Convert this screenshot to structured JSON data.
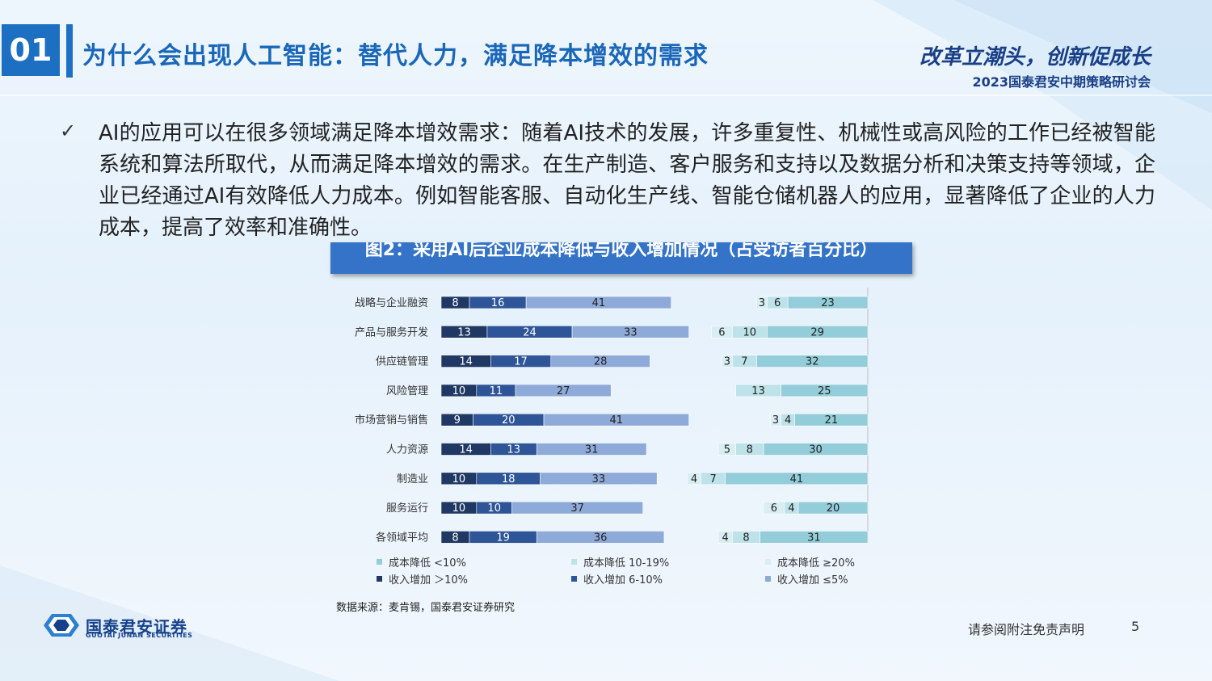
{
  "header": {
    "section_number": "01",
    "title": "为什么会出现人工智能：替代人力，满足降本增效的需求",
    "slogan": "改革立潮头，创新促成长",
    "conference": "2023国泰君安中期策略研讨会"
  },
  "body": {
    "bullet_icon": "checkmark-icon",
    "paragraph": "AI的应用可以在很多领域满足降本增效需求：随着AI技术的发展，许多重复性、机械性或高风险的工作已经被智能系统和算法所取代，从而满足降本增效的需求。在生产制造、客户服务和支持以及数据分析和决策支持等领域，企业已经通过AI有效降低人力成本。例如智能客服、自动化生产线、智能仓储机器人的应用，显著降低了企业的人力成本，提高了效率和准确性。"
  },
  "chart_title": "图2：采用AI后企业成本降低与收入增加情况（占受访者百分比）",
  "chart_data": {
    "type": "bar",
    "orientation": "horizontal-stacked",
    "categories": [
      "战略与企业融资",
      "产品与服务开发",
      "供应链管理",
      "风险管理",
      "市场营销与销售",
      "人力资源",
      "制造业",
      "服务运行",
      "各领域平均"
    ],
    "revenue_increase": {
      "series": [
        {
          "name": "收入增加 ＞10%",
          "color": "#203864",
          "values": [
            8,
            13,
            14,
            10,
            9,
            14,
            10,
            10,
            8
          ]
        },
        {
          "name": "收入增加 6-10%",
          "color": "#2e5597",
          "values": [
            16,
            24,
            17,
            11,
            20,
            13,
            18,
            10,
            19
          ]
        },
        {
          "name": "收入增加 ≤5%",
          "color": "#8eaad8",
          "values": [
            41,
            33,
            28,
            27,
            41,
            31,
            33,
            37,
            36
          ]
        }
      ]
    },
    "cost_decrease": {
      "series": [
        {
          "name": "成本降低 ≥20%",
          "color": "#d8eef2",
          "values": [
            3,
            6,
            3,
            null,
            3,
            5,
            4,
            6,
            4
          ]
        },
        {
          "name": "成本降低 10-19%",
          "color": "#bde2e9",
          "values": [
            6,
            10,
            7,
            13,
            4,
            8,
            7,
            4,
            8
          ]
        },
        {
          "name": "成本降低 <10%",
          "color": "#93cdd9",
          "values": [
            23,
            29,
            32,
            25,
            21,
            30,
            41,
            20,
            31
          ]
        }
      ]
    },
    "legend": [
      {
        "label": "成本降低 <10%",
        "color": "#93cdd9"
      },
      {
        "label": "成本降低 10-19%",
        "color": "#bde2e9"
      },
      {
        "label": "成本降低 ≥20%",
        "color": "#d8eef2"
      },
      {
        "label": "收入增加 ＞10%",
        "color": "#203864"
      },
      {
        "label": "收入增加 6-10%",
        "color": "#2e5597"
      },
      {
        "label": "收入增加 ≤5%",
        "color": "#8eaad8"
      }
    ]
  },
  "source": "数据来源：麦肯锡，国泰君安证券研究",
  "footer": {
    "logo_cn": "国泰君安证券",
    "logo_en": "GUOTAI JUNAN SECURITIES",
    "disclaimer": "请参阅附注免责声明",
    "page_number": "5"
  }
}
